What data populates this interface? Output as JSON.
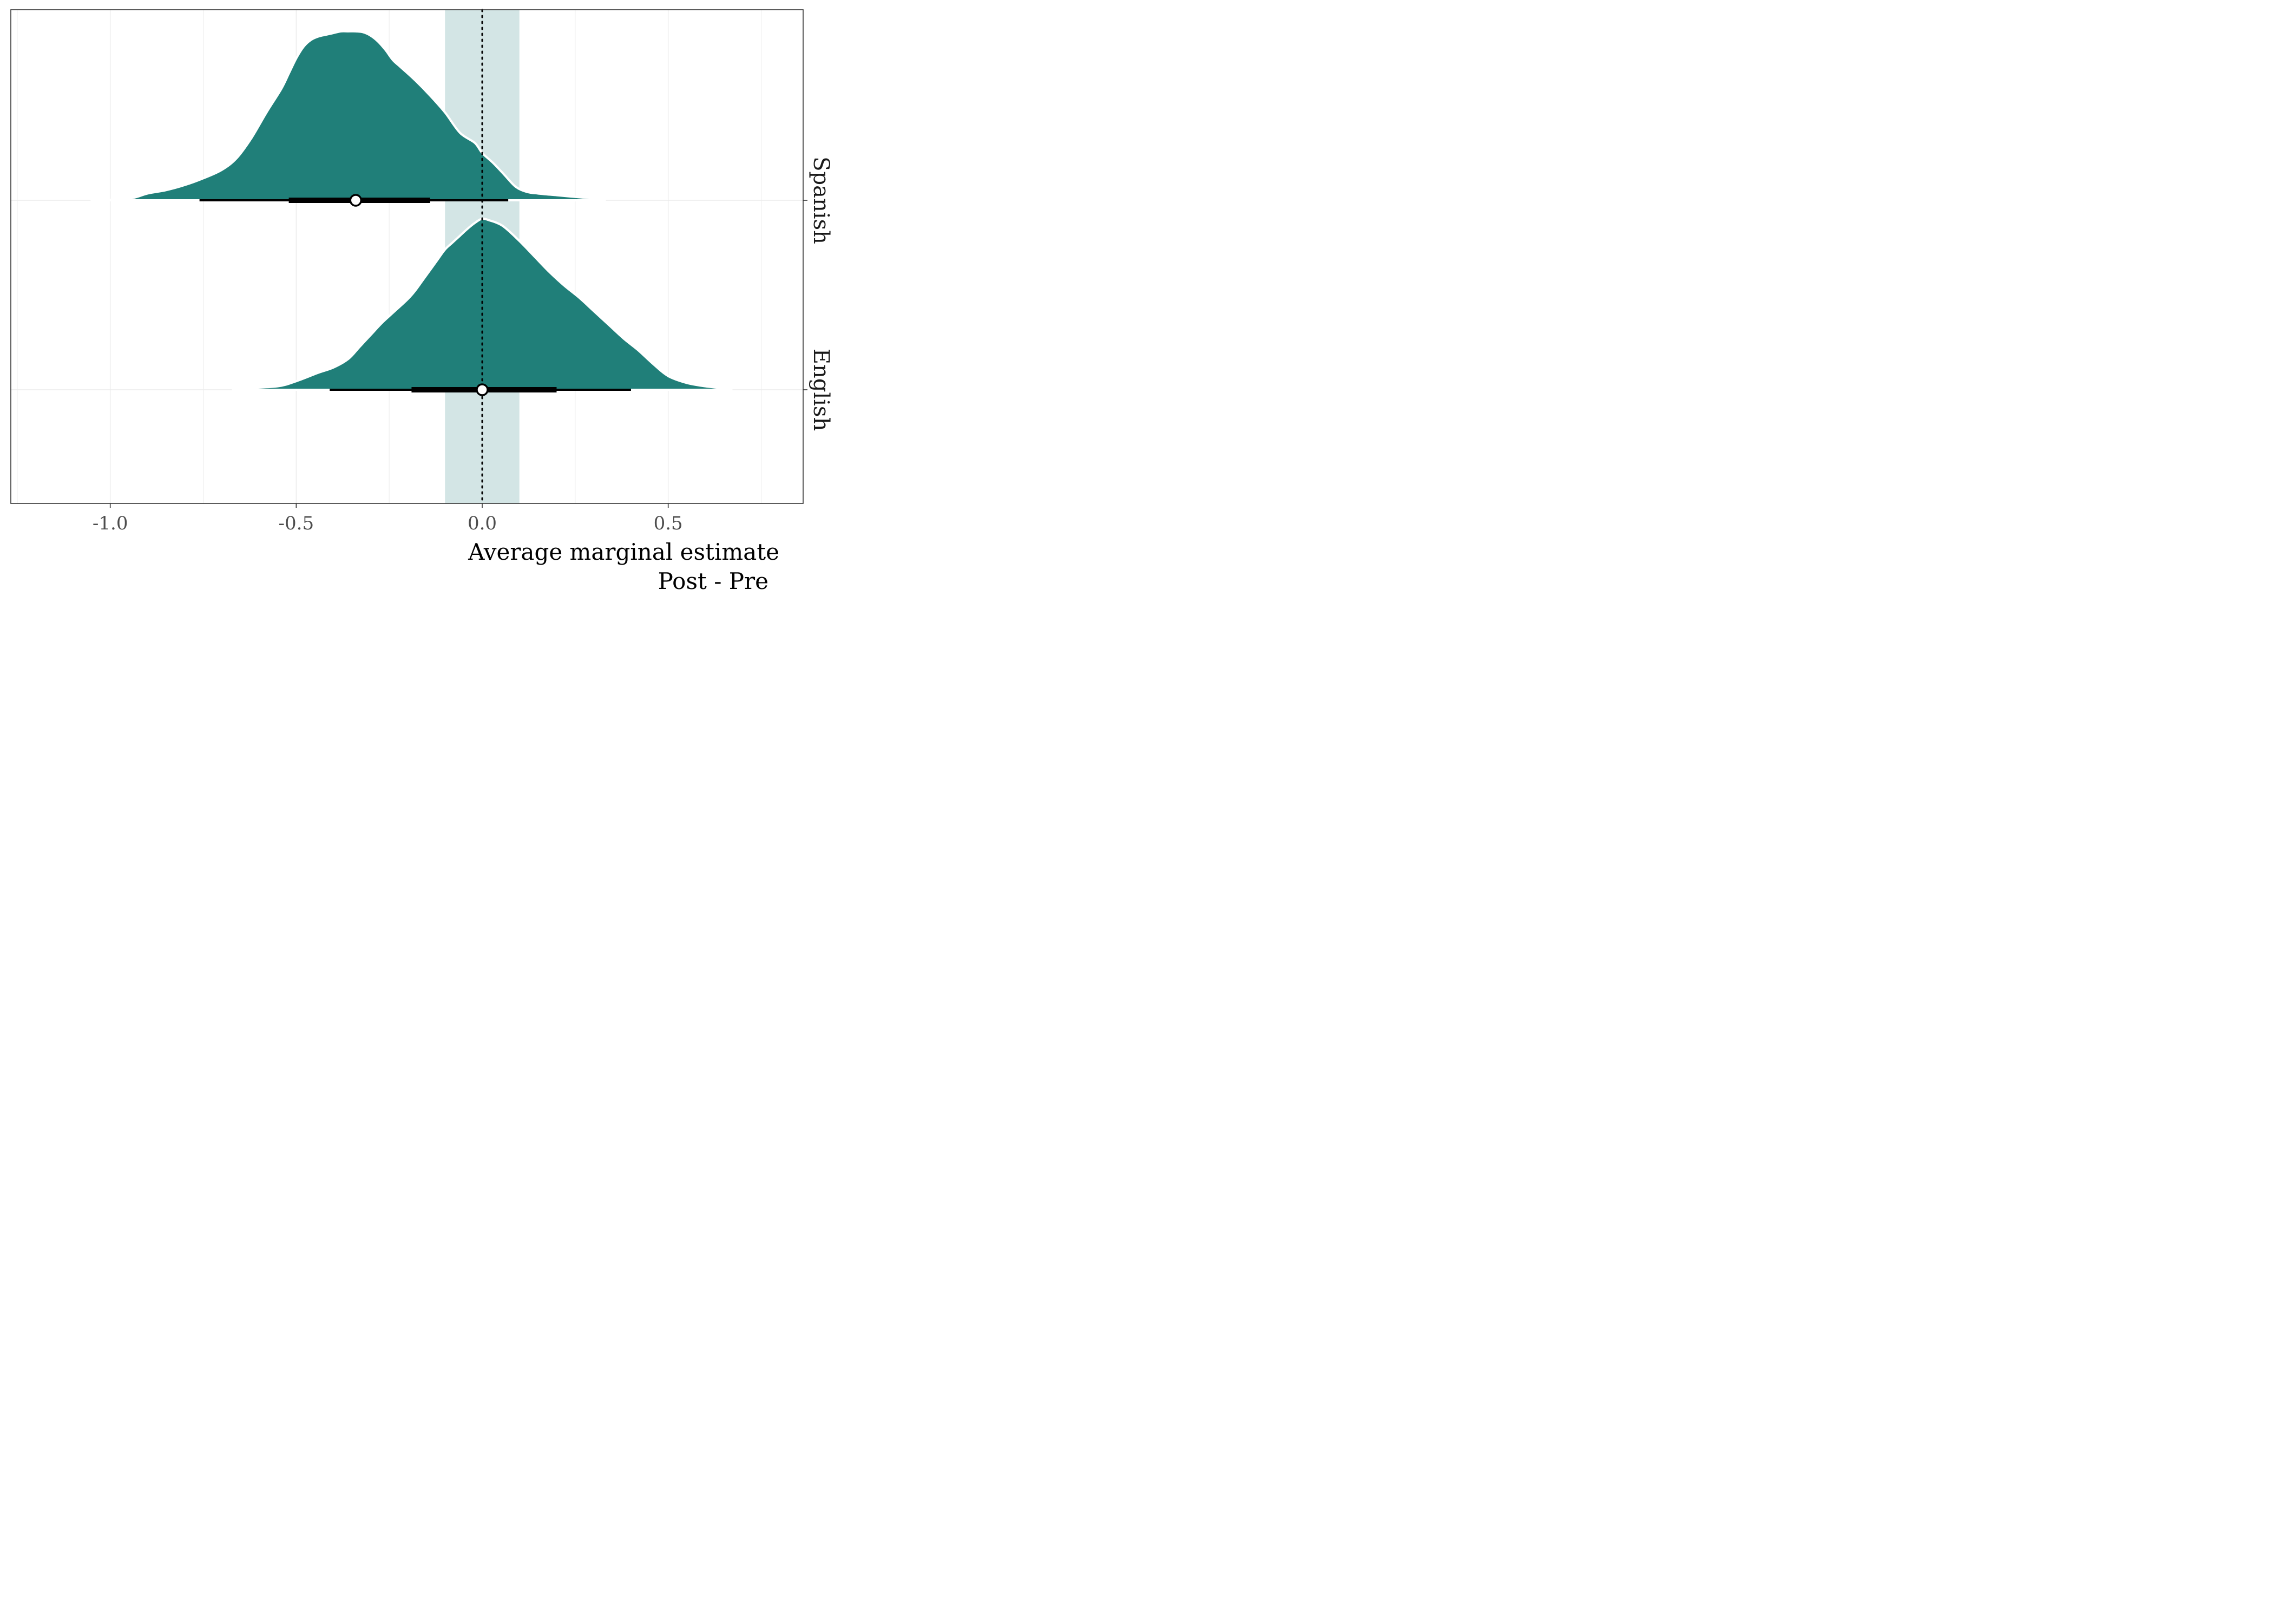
{
  "chart_data": {
    "type": "density",
    "xlabel_lines": [
      "Average marginal estimate",
      "Post - Pre"
    ],
    "xlim": [
      -1.25,
      0.85
    ],
    "x_ticks": [
      -1.0,
      -0.5,
      0.0,
      0.5
    ],
    "x_tick_labels": [
      "-1.0",
      "-0.5",
      "0.0",
      "0.5"
    ],
    "x_minor_gridlines": [
      -1.25,
      -0.75,
      -0.25,
      0.25,
      0.75
    ],
    "rope": [
      -0.1,
      0.1
    ],
    "reference_line": 0.0,
    "grid": true,
    "colors": {
      "fill": "#207f79",
      "rope": "#d3e5e5",
      "interval": "#000000",
      "grid": "#ebebeb",
      "panel_border": "#333333"
    },
    "series": [
      {
        "name": "Spanish",
        "point_estimate": -0.34,
        "interval_66": [
          -0.52,
          -0.14
        ],
        "interval_95": [
          -0.76,
          0.07
        ],
        "density": [
          [
            -1.05,
            0.0
          ],
          [
            -0.95,
            0.01
          ],
          [
            -0.9,
            0.04
          ],
          [
            -0.85,
            0.06
          ],
          [
            -0.8,
            0.09
          ],
          [
            -0.75,
            0.13
          ],
          [
            -0.7,
            0.18
          ],
          [
            -0.66,
            0.25
          ],
          [
            -0.62,
            0.37
          ],
          [
            -0.58,
            0.52
          ],
          [
            -0.54,
            0.66
          ],
          [
            -0.52,
            0.75
          ],
          [
            -0.5,
            0.84
          ],
          [
            -0.48,
            0.91
          ],
          [
            -0.46,
            0.95
          ],
          [
            -0.44,
            0.97
          ],
          [
            -0.42,
            0.98
          ],
          [
            -0.4,
            0.99
          ],
          [
            -0.38,
            1.0
          ],
          [
            -0.36,
            1.0
          ],
          [
            -0.34,
            1.0
          ],
          [
            -0.32,
            0.995
          ],
          [
            -0.3,
            0.975
          ],
          [
            -0.28,
            0.94
          ],
          [
            -0.26,
            0.89
          ],
          [
            -0.24,
            0.83
          ],
          [
            -0.22,
            0.79
          ],
          [
            -0.18,
            0.71
          ],
          [
            -0.14,
            0.62
          ],
          [
            -0.1,
            0.52
          ],
          [
            -0.06,
            0.4
          ],
          [
            -0.02,
            0.34
          ],
          [
            0.0,
            0.28
          ],
          [
            0.03,
            0.22
          ],
          [
            0.06,
            0.15
          ],
          [
            0.09,
            0.08
          ],
          [
            0.12,
            0.05
          ],
          [
            0.15,
            0.04
          ],
          [
            0.2,
            0.03
          ],
          [
            0.25,
            0.02
          ],
          [
            0.3,
            0.01
          ],
          [
            0.33,
            0.0
          ]
        ]
      },
      {
        "name": "English",
        "point_estimate": 0.0,
        "interval_66": [
          -0.19,
          0.2
        ],
        "interval_95": [
          -0.41,
          0.4
        ],
        "density": [
          [
            -0.67,
            0.0
          ],
          [
            -0.63,
            0.01
          ],
          [
            -0.55,
            0.02
          ],
          [
            -0.5,
            0.05
          ],
          [
            -0.44,
            0.1
          ],
          [
            -0.4,
            0.13
          ],
          [
            -0.36,
            0.18
          ],
          [
            -0.33,
            0.25
          ],
          [
            -0.3,
            0.32
          ],
          [
            -0.27,
            0.39
          ],
          [
            -0.24,
            0.45
          ],
          [
            -0.2,
            0.53
          ],
          [
            -0.18,
            0.58
          ],
          [
            -0.16,
            0.64
          ],
          [
            -0.14,
            0.7
          ],
          [
            -0.12,
            0.76
          ],
          [
            -0.1,
            0.82
          ],
          [
            -0.08,
            0.86
          ],
          [
            -0.06,
            0.9
          ],
          [
            -0.04,
            0.94
          ],
          [
            -0.02,
            0.975
          ],
          [
            0.0,
            1.0
          ],
          [
            0.02,
            0.99
          ],
          [
            0.04,
            0.975
          ],
          [
            0.06,
            0.95
          ],
          [
            0.1,
            0.87
          ],
          [
            0.14,
            0.78
          ],
          [
            0.18,
            0.69
          ],
          [
            0.22,
            0.61
          ],
          [
            0.26,
            0.54
          ],
          [
            0.3,
            0.46
          ],
          [
            0.34,
            0.38
          ],
          [
            0.38,
            0.3
          ],
          [
            0.42,
            0.23
          ],
          [
            0.46,
            0.15
          ],
          [
            0.5,
            0.08
          ],
          [
            0.55,
            0.04
          ],
          [
            0.6,
            0.02
          ],
          [
            0.64,
            0.01
          ],
          [
            0.67,
            0.0
          ]
        ]
      }
    ]
  }
}
